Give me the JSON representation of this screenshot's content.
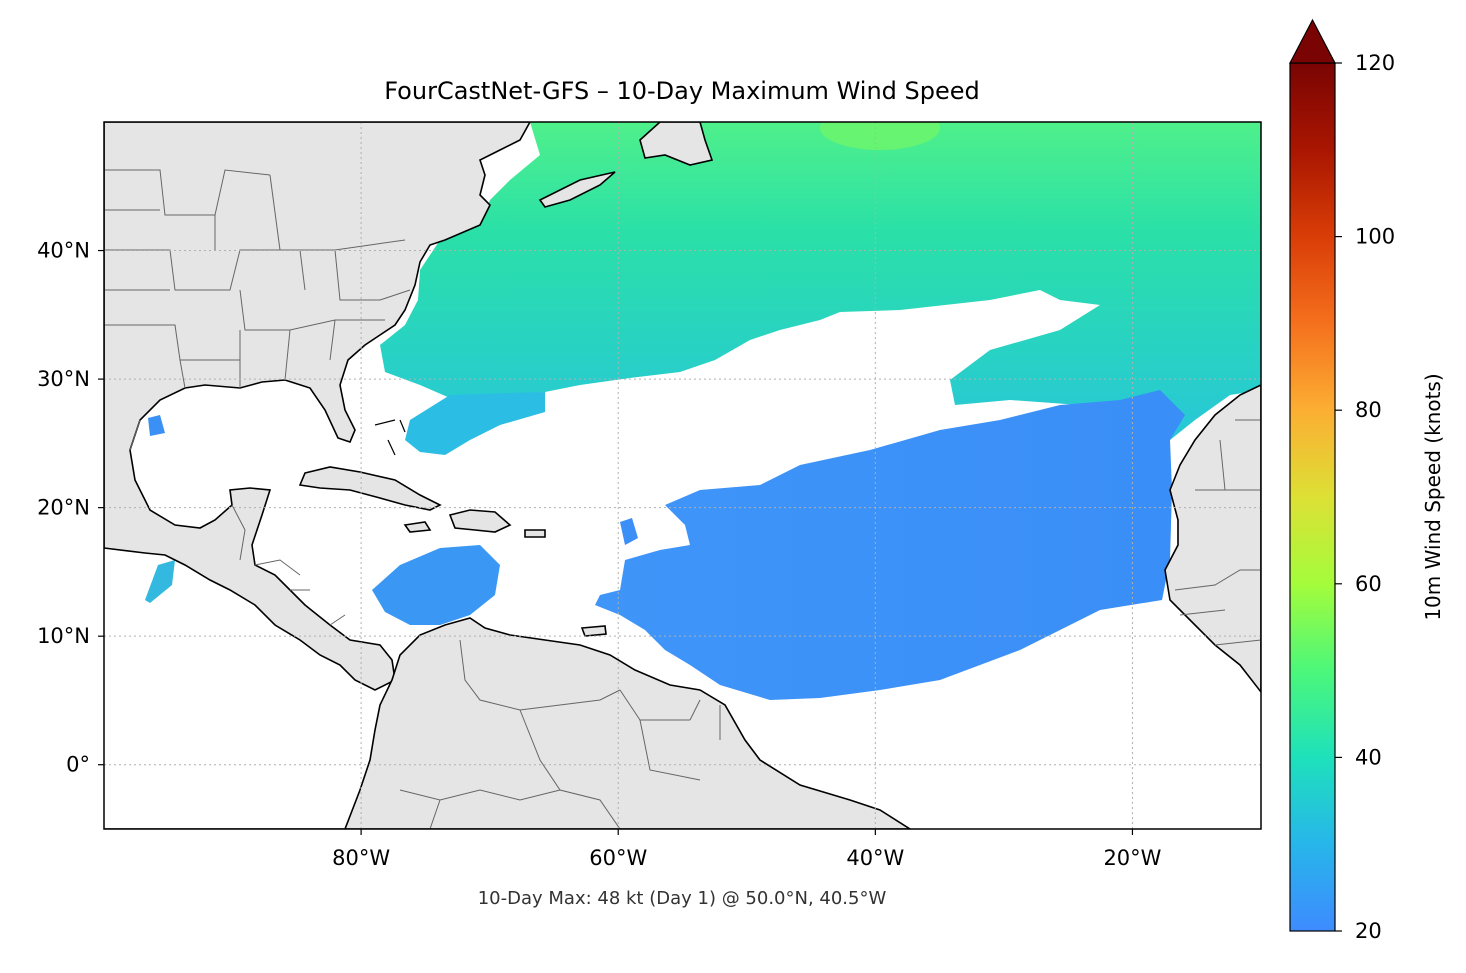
{
  "title": "FourCastNet-GFS – 10-Day Maximum Wind Speed",
  "footnote": "10-Day Max: 48 kt (Day 1) @ 50.0°N, 40.5°W",
  "map": {
    "lon_range": [
      -100,
      -10
    ],
    "lat_range": [
      -5,
      50
    ],
    "lon_ticks": [
      {
        "value": -80,
        "label": "80°W"
      },
      {
        "value": -60,
        "label": "60°W"
      },
      {
        "value": -40,
        "label": "40°W"
      },
      {
        "value": -20,
        "label": "20°W"
      }
    ],
    "lat_ticks": [
      {
        "value": 40,
        "label": "40°N"
      },
      {
        "value": 30,
        "label": "30°N"
      },
      {
        "value": 20,
        "label": "20°N"
      },
      {
        "value": 10,
        "label": "10°N"
      },
      {
        "value": 0,
        "label": "0°"
      }
    ],
    "land_color": "#e5e5e5",
    "gridlines": "dotted"
  },
  "colorbar": {
    "label": "10m Wind Speed (knots)",
    "range": [
      20,
      120
    ],
    "extend": "max",
    "colormap": "turbo",
    "ticks": [
      {
        "value": 20,
        "label": "20"
      },
      {
        "value": 40,
        "label": "40"
      },
      {
        "value": 60,
        "label": "60"
      },
      {
        "value": 80,
        "label": "80"
      },
      {
        "value": 100,
        "label": "100"
      },
      {
        "value": 120,
        "label": "120"
      }
    ]
  }
}
